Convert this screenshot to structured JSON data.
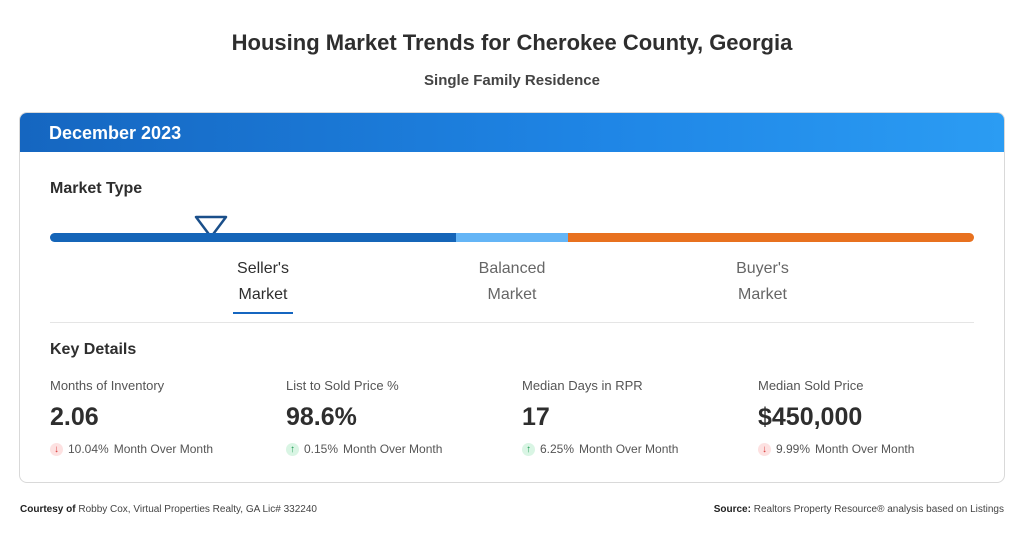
{
  "header": {
    "title": "Housing Market Trends for Cherokee County, Georgia",
    "subtitle": "Single Family Residence"
  },
  "card": {
    "period": "December 2023",
    "market_type": {
      "label": "Market Type",
      "options": [
        {
          "line1": "Seller's",
          "line2": "Market",
          "active": true
        },
        {
          "line1": "Balanced",
          "line2": "Market",
          "active": false
        },
        {
          "line1": "Buyer's",
          "line2": "Market",
          "active": false
        }
      ],
      "colors": {
        "seller": "#1565b8",
        "balanced": "#64b5f6",
        "buyer": "#e8711f"
      }
    },
    "key_details": {
      "label": "Key Details",
      "stats": [
        {
          "label": "Months of Inventory",
          "value": "2.06",
          "direction": "down",
          "change": "10.04%",
          "period": "Month Over Month"
        },
        {
          "label": "List to Sold Price %",
          "value": "98.6%",
          "direction": "up",
          "change": "0.15%",
          "period": "Month Over Month"
        },
        {
          "label": "Median Days in RPR",
          "value": "17",
          "direction": "up",
          "change": "6.25%",
          "period": "Month Over Month"
        },
        {
          "label": "Median Sold Price",
          "value": "$450,000",
          "direction": "down",
          "change": "9.99%",
          "period": "Month Over Month"
        }
      ]
    }
  },
  "footer": {
    "courtesy_label": "Courtesy of",
    "courtesy_text": "Robby Cox, Virtual Properties Realty, GA Lic# 332240",
    "source_label": "Source:",
    "source_text": "Realtors Property Resource® analysis based on Listings"
  },
  "icons": {
    "down": "arrow-down-icon",
    "up": "arrow-up-icon"
  }
}
